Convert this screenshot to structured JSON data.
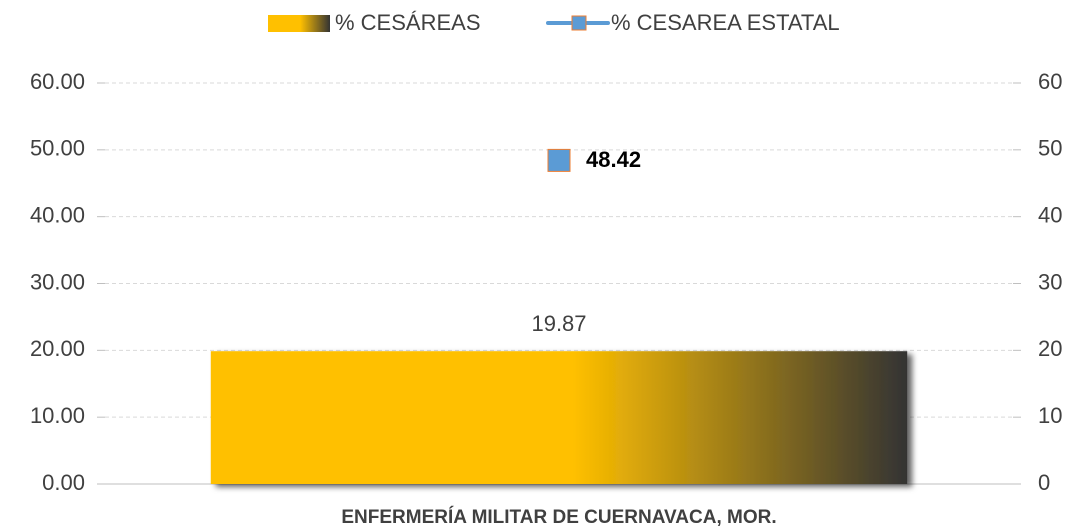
{
  "chart_data": {
    "type": "bar",
    "categories": [
      "ENFERMERÍA MILITAR DE CUERNAVACA, MOR."
    ],
    "series": [
      {
        "name": "% CESÁREAS",
        "color": "#ffc000",
        "values": [
          19.87
        ]
      },
      {
        "name": "% CESAREA ESTATAL",
        "color": "#5b9bd5",
        "values": [
          48.42
        ],
        "axis": "y2",
        "type": "line"
      }
    ],
    "ylim": [
      0,
      60
    ],
    "yticks": [
      {
        "value": 0,
        "label": "0.00"
      },
      {
        "value": 10,
        "label": "10.00"
      },
      {
        "value": 20,
        "label": "20.00"
      },
      {
        "value": 30,
        "label": "30.00"
      },
      {
        "value": 40,
        "label": "40.00"
      },
      {
        "value": 50,
        "label": "50.00"
      },
      {
        "value": 60,
        "label": "60.00"
      }
    ],
    "y2lim": [
      0,
      60
    ],
    "y2ticks": [
      0,
      10,
      20,
      30,
      40,
      50,
      60
    ],
    "grid": true,
    "legend": "top"
  }
}
